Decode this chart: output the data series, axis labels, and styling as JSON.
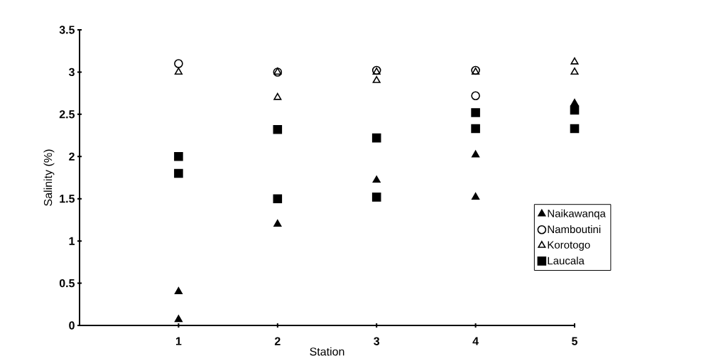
{
  "chart_data": {
    "type": "scatter",
    "xlabel": "Station",
    "ylabel": "Salinity (%)",
    "xlim": [
      0,
      5
    ],
    "xticks": [
      1,
      2,
      3,
      4,
      5
    ],
    "ylim": [
      0,
      3.5
    ],
    "yticks": [
      0,
      0.5,
      1,
      1.5,
      2,
      2.5,
      3,
      3.5
    ],
    "legend": "right",
    "grid": false,
    "series": [
      {
        "name": "Naikawanqa",
        "color": "#000000",
        "marker": "triangle",
        "x": [
          1,
          1,
          2,
          3,
          4,
          4,
          5
        ],
        "values": [
          0.4,
          0.07,
          1.2,
          1.72,
          2.02,
          1.52,
          2.63
        ]
      },
      {
        "name": "Namboutini",
        "color": "#000000",
        "marker": "circle-open",
        "x": [
          1,
          2,
          3,
          4,
          4
        ],
        "values": [
          3.1,
          3.0,
          3.02,
          3.02,
          2.72
        ]
      },
      {
        "name": "Korotogo",
        "color": "#000000",
        "marker": "triangle-open",
        "x": [
          1,
          2,
          2,
          3,
          3,
          4,
          5,
          5
        ],
        "values": [
          3.0,
          3.0,
          2.7,
          2.9,
          3.0,
          3.0,
          3.12,
          3.0
        ]
      },
      {
        "name": "Laucala",
        "color": "#000000",
        "marker": "square",
        "x": [
          1,
          1,
          2,
          2,
          3,
          3,
          4,
          4,
          5,
          5
        ],
        "values": [
          2.0,
          1.8,
          2.32,
          1.5,
          2.22,
          1.52,
          2.52,
          2.33,
          2.55,
          2.33
        ]
      }
    ]
  }
}
